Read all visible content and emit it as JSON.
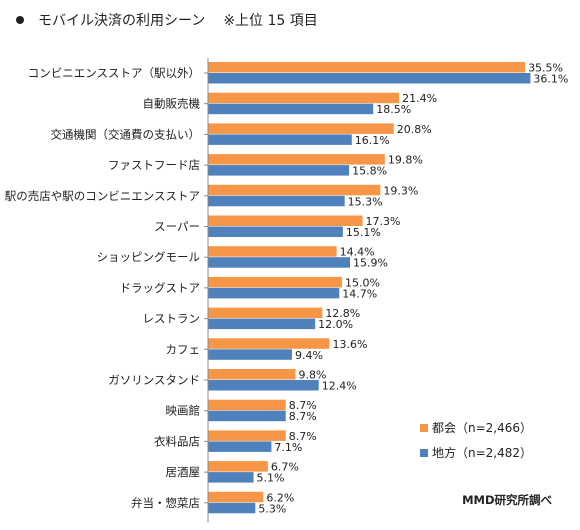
{
  "header": {
    "title": "モバイル決済の利用シーン",
    "subtitle": "※上位 15 項目"
  },
  "chart_data": {
    "type": "bar",
    "orientation": "horizontal",
    "title": "モバイル決済の利用シーン",
    "subtitle": "※上位 15 項目",
    "categories": [
      "コンビニエンスストア（駅以外）",
      "自動販売機",
      "交通機関（交通費の支払い）",
      "ファストフード店",
      "駅の売店や駅のコンビニエンスストア",
      "スーパー",
      "ショッピングモール",
      "ドラッグストア",
      "レストラン",
      "カフェ",
      "ガソリンスタンド",
      "映画館",
      "衣料品店",
      "居酒屋",
      "弁当・惣菜店"
    ],
    "series": [
      {
        "name": "都会（n=2,466）",
        "color": "#F79646",
        "values": [
          35.5,
          21.4,
          20.8,
          19.8,
          19.3,
          17.3,
          14.4,
          15.0,
          12.8,
          13.6,
          9.8,
          8.7,
          8.7,
          6.7,
          6.2
        ],
        "labels": [
          "35.5%",
          "21.4%",
          "20.8%",
          "19.8%",
          "19.3%",
          "17.3%",
          "14.4%",
          "15.0%",
          "12.8%",
          "13.6%",
          "9.8%",
          "8.7%",
          "8.7%",
          "6.7%",
          "6.2%"
        ]
      },
      {
        "name": "地方（n=2,482）",
        "color": "#4F81BD",
        "values": [
          36.1,
          18.5,
          16.1,
          15.8,
          15.3,
          15.1,
          15.9,
          14.7,
          12.0,
          9.4,
          12.4,
          8.7,
          7.1,
          5.1,
          5.3
        ],
        "labels": [
          "36.1%",
          "18.5%",
          "16.1%",
          "15.8%",
          "15.3%",
          "15.1%",
          "15.9%",
          "14.7%",
          "12.0%",
          "9.4%",
          "12.4%",
          "8.7%",
          "7.1%",
          "5.1%",
          "5.3%"
        ]
      }
    ],
    "xlim": [
      0,
      36.5
    ],
    "legend": "bottom-right",
    "source": "MMD研究所調べ"
  }
}
